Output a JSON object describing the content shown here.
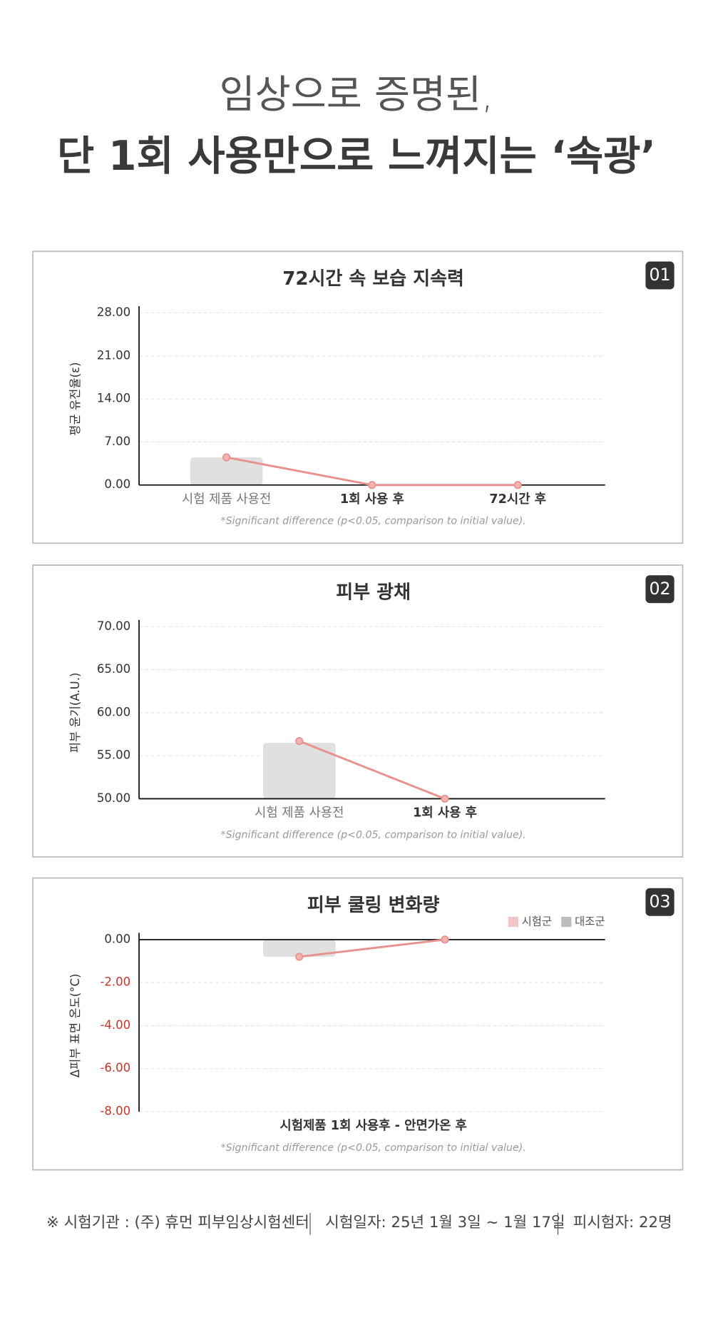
{
  "header": {
    "line1": "임상으로 증명된,",
    "line2": "단 1회 사용만으로 느껴지는 ‘속광’"
  },
  "chart_data": [
    {
      "type": "combo",
      "title": "72시간 속 보습 지속력",
      "badge": "01",
      "ylabel": "평균 유전율(ε)",
      "categories": [
        "시험 제품 사용전",
        "1회 사용 후",
        "72시간 후"
      ],
      "series": [
        {
          "type": "bar",
          "color": "#e0e0e0",
          "values": [
            4.5,
            null,
            null
          ]
        },
        {
          "type": "line",
          "color": "#e8928f",
          "values": [
            4.5,
            0,
            0
          ]
        }
      ],
      "ylim": [
        0,
        28
      ],
      "yticks": [
        {
          "value": 0,
          "label": "0.00"
        },
        {
          "value": 7,
          "label": "7.00"
        },
        {
          "value": 14,
          "label": "14.00"
        },
        {
          "value": 21,
          "label": "21.00"
        },
        {
          "value": 28,
          "label": "28.00"
        }
      ],
      "grid": true,
      "note": "*Significant difference (p<0.05, comparison to initial value)."
    },
    {
      "type": "combo",
      "title": "피부 광채",
      "badge": "02",
      "ylabel": "피부 윤기(A.U.)",
      "categories": [
        "시험 제품 사용전",
        "1회 사용 후"
      ],
      "series": [
        {
          "type": "bar",
          "color": "#e0e0e0",
          "values": [
            56.5,
            null
          ]
        },
        {
          "type": "line",
          "color": "#e8928f",
          "values": [
            56.7,
            50
          ]
        }
      ],
      "ylim": [
        50,
        70
      ],
      "yticks": [
        {
          "value": 50,
          "label": "50.00"
        },
        {
          "value": 55,
          "label": "55.00"
        },
        {
          "value": 60,
          "label": "60.00"
        },
        {
          "value": 65,
          "label": "65.00"
        },
        {
          "value": 70,
          "label": "70.00"
        }
      ],
      "grid": true,
      "note": "*Significant difference (p<0.05, comparison to initial value)."
    },
    {
      "type": "combo",
      "title": "피부 쿨링 변화량",
      "badge": "03",
      "ylabel": "Δ피부 표면 온도(°C)",
      "xlabel": "시험제품 1회 사용후 - 안면가온 후",
      "categories": [
        null,
        null
      ],
      "series": [
        {
          "name": "시험군",
          "type": "line",
          "color": "#e8928f",
          "legend_color": "#f2c4c2",
          "values": [
            -0.8,
            0
          ]
        },
        {
          "name": "대조군",
          "type": "bar",
          "color": "#e0e0e0",
          "legend_color": "#bdbdbd",
          "values": [
            -0.8,
            null
          ]
        }
      ],
      "ylim": [
        -8,
        0
      ],
      "yticks": [
        {
          "value": -8,
          "label": "-8.00"
        },
        {
          "value": -6,
          "label": "-6.00"
        },
        {
          "value": -4,
          "label": "-4.00"
        },
        {
          "value": -2,
          "label": "-2.00"
        },
        {
          "value": 0,
          "label": "0.00"
        }
      ],
      "grid": true,
      "legend": "top-right",
      "note": "*Significant difference (p<0.05, comparison to initial value)."
    }
  ],
  "footer": {
    "institution": "※ 시험기관 : (주) 휴먼 피부임상시험센터",
    "period": "시험일자: 25년 1월 3일 ~ 1월 17일",
    "subjects": "피시험자: 22명"
  }
}
